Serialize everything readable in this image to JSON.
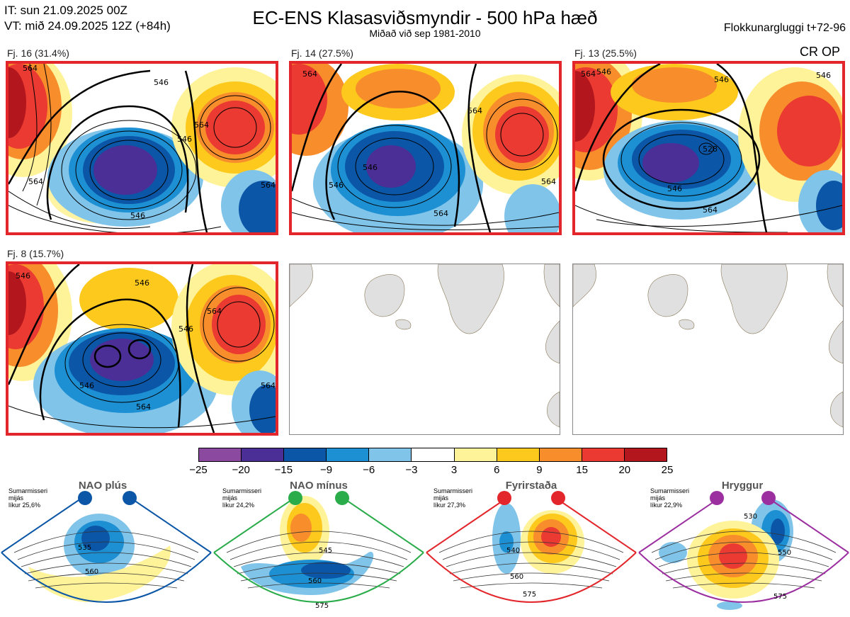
{
  "header": {
    "it_line": "IT: sun 21.09.2025 00Z",
    "vt_line": "VT: mið 24.09.2025 12Z  (+84h)",
    "title": "EC-ENS Klasasviðsmyndir - 500 hPa hæð",
    "subtitle": "Miðað við sep 1981-2010",
    "window": "Flokkunargluggi t+72-96",
    "cr_op": "CR OP"
  },
  "clusters": [
    {
      "label": "Fj. 16 (31.4%)",
      "contours": [
        "564",
        "546",
        "546",
        "564",
        "564",
        "546",
        "564"
      ]
    },
    {
      "label": "Fj. 14 (27.5%)",
      "contours": [
        "564",
        "546",
        "564",
        "546",
        "564",
        "564"
      ]
    },
    {
      "label": "Fj. 13 (25.5%)",
      "contours": [
        "564",
        "546",
        "546",
        "528",
        "546",
        "564",
        "546"
      ]
    },
    {
      "label": "Fj. 8 (15.7%)",
      "contours": [
        "546",
        "546",
        "564",
        "546",
        "546",
        "564",
        "564"
      ]
    }
  ],
  "colorbar": {
    "ticks": [
      "−25",
      "−20",
      "−15",
      "−9",
      "−6",
      "−3",
      "3",
      "6",
      "9",
      "15",
      "20",
      "25"
    ],
    "colors": [
      "#8b4a9f",
      "#4b2e96",
      "#0b56a6",
      "#1d8fd3",
      "#80c4ea",
      "#ffffff",
      "#fff39a",
      "#fdc91c",
      "#f88d2c",
      "#ea3a31",
      "#b3161c"
    ]
  },
  "regimes": [
    {
      "title": "NAO plús",
      "season": "Sumarmisseri",
      "metric": "mijás",
      "prob": "líkur 25,6%",
      "color": "#0b56a6",
      "labels": [
        "535",
        "560"
      ]
    },
    {
      "title": "NAO mínus",
      "season": "Sumarmisseri",
      "metric": "mijás",
      "prob": "líkur 24,2%",
      "color": "#2aac4a",
      "labels": [
        "545",
        "560",
        "575"
      ]
    },
    {
      "title": "Fyrirstaða",
      "season": "Sumarmisseri",
      "metric": "mijás",
      "prob": "líkur 27,3%",
      "color": "#e3262b",
      "labels": [
        "540",
        "560",
        "575"
      ]
    },
    {
      "title": "Hryggur",
      "season": "Sumarmisseri",
      "metric": "mijás",
      "prob": "líkur 22,9%",
      "color": "#9b2fa0",
      "labels": [
        "530",
        "550",
        "575"
      ]
    }
  ]
}
